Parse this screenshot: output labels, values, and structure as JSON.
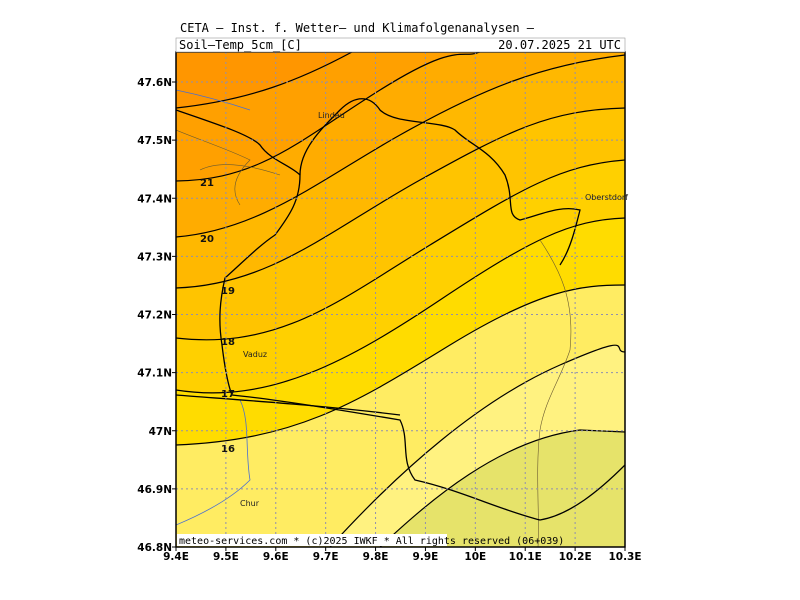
{
  "header": {
    "title": "CETA — Inst. f. Wetter— und Klimafolgenanalysen —",
    "field": "Soil—Temp_5cm_[C]",
    "time": "20.07.2025  21  UTC"
  },
  "axes": {
    "x_labels": [
      "9.4E",
      "9.5E",
      "9.6E",
      "9.7E",
      "9.8E",
      "9.9E",
      "10E",
      "10.1E",
      "10.2E",
      "10.3E"
    ],
    "y_labels": [
      "46.8N",
      "46.9N",
      "47N",
      "47.1N",
      "47.2N",
      "47.3N",
      "47.4N",
      "47.5N",
      "47.6N"
    ]
  },
  "contour_labels": [
    "21",
    "20",
    "19",
    "18",
    "17",
    "16"
  ],
  "places": [
    "Lindau",
    "Oberstdorf",
    "Vaduz",
    "Chur"
  ],
  "footer": "meteo-services.com * (c)2025 IWKF * All rights reserved (06+039)"
}
